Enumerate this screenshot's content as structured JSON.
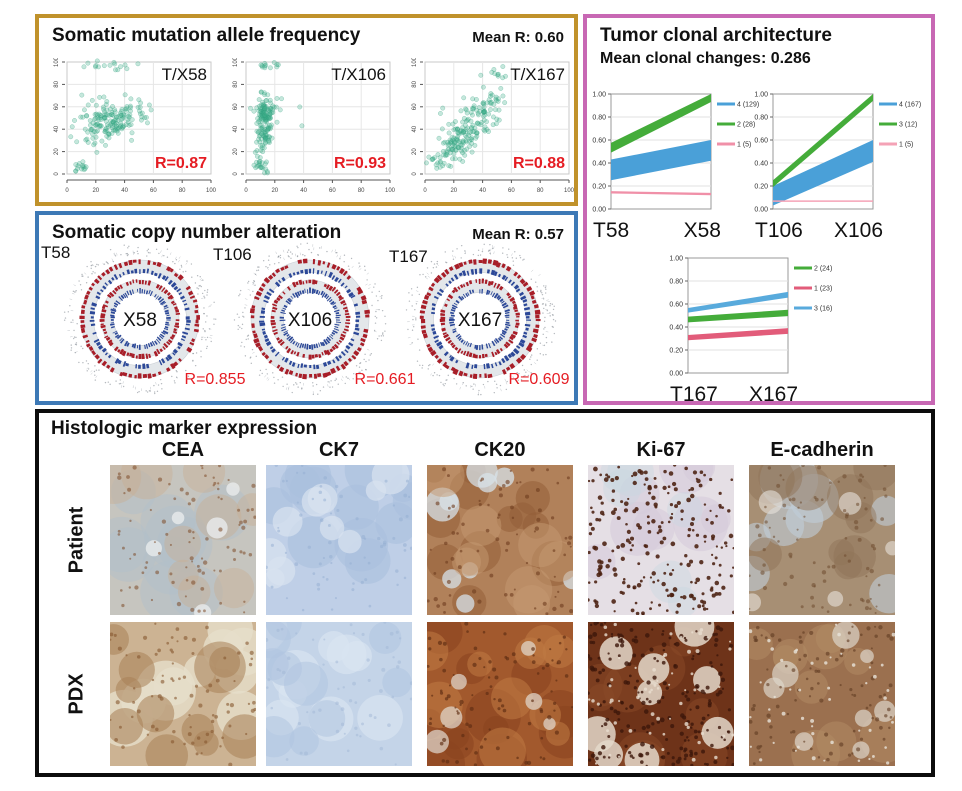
{
  "panels": {
    "maf": {
      "title": "Somatic mutation allele frequency",
      "mean_r": "Mean R: 0.60"
    },
    "scna": {
      "title": "Somatic copy number alteration",
      "mean_r": "Mean R: 0.57"
    },
    "clonal": {
      "title": "Tumor clonal architecture",
      "subtitle": "Mean clonal changes: 0.286"
    },
    "histo": {
      "title": "Histologic marker expression",
      "columns": [
        "CEA",
        "CK7",
        "CK20",
        "Ki-67",
        "E-cadherin"
      ],
      "rows": [
        "Patient",
        "PDX"
      ]
    }
  },
  "colors": {
    "maf_border": "#c0922b",
    "scna_border": "#3d79b6",
    "clonal_border": "#c868b4",
    "histo_border": "#0c0c0c",
    "scatter_point": "#3fae8c",
    "red_label": "#e51c23",
    "circos_red": "#a81e28",
    "circos_blue": "#2c4898",
    "clonal_blue": "#4aa0d8",
    "clonal_green": "#44ac3a",
    "clonal_pink": "#f090a8",
    "clonal_redpink": "#e25c7a"
  },
  "chart_data": {
    "maf_scatters": [
      {
        "type": "scatter",
        "label": "T/X58",
        "r_label": "R=0.87",
        "xlim": [
          0,
          100
        ],
        "ylim": [
          0,
          100
        ],
        "ticks": [
          0,
          20,
          40,
          60,
          80,
          100
        ],
        "seed": 101,
        "clusters": [
          [
            30,
            46,
            8,
            7,
            110
          ],
          [
            33,
            53,
            12,
            10,
            40
          ],
          [
            10,
            7,
            2.5,
            3,
            14
          ],
          [
            28,
            97,
            10,
            2,
            16
          ],
          [
            50,
            60,
            8,
            8,
            10
          ],
          [
            15,
            30,
            6,
            6,
            10
          ]
        ]
      },
      {
        "type": "scatter",
        "label": "T/X106",
        "r_label": "R=0.93",
        "xlim": [
          0,
          100
        ],
        "ylim": [
          0,
          100
        ],
        "ticks": [
          0,
          20,
          40,
          60,
          80,
          100
        ],
        "seed": 102,
        "clusters": [
          [
            13,
            50,
            3,
            8,
            90
          ],
          [
            13,
            30,
            3,
            8,
            40
          ],
          [
            11,
            8,
            2.5,
            4,
            22
          ],
          [
            13,
            62,
            4,
            6,
            25
          ],
          [
            14,
            96,
            5,
            2.5,
            12
          ],
          [
            28,
            55,
            8,
            8,
            6
          ]
        ]
      },
      {
        "type": "scatter",
        "label": "T/X167",
        "r_label": "R=0.88",
        "xlim": [
          0,
          100
        ],
        "ylim": [
          0,
          100
        ],
        "ticks": [
          0,
          20,
          40,
          60,
          80,
          100
        ],
        "seed": 103,
        "clusters": [
          [
            20,
            24,
            6,
            6,
            60
          ],
          [
            30,
            38,
            6,
            6,
            55
          ],
          [
            38,
            52,
            6,
            7,
            40
          ],
          [
            46,
            66,
            5,
            6,
            22
          ],
          [
            10,
            10,
            4,
            4,
            18
          ],
          [
            50,
            88,
            5,
            4,
            10
          ],
          [
            25,
            55,
            8,
            8,
            10
          ]
        ]
      }
    ],
    "scna_circos": [
      {
        "type": "heatmap-circular",
        "outer_label": "T58",
        "center_label": "X58",
        "r_label": "R=0.855",
        "seed": 201
      },
      {
        "type": "heatmap-circular",
        "outer_label": "T106",
        "center_label": "X106",
        "r_label": "R=0.661",
        "seed": 202
      },
      {
        "type": "heatmap-circular",
        "outer_label": "T167",
        "center_label": "X167",
        "r_label": "R=0.609",
        "seed": 203
      }
    ],
    "clonal_charts": [
      {
        "type": "area",
        "x_labels": [
          "T58",
          "X58"
        ],
        "ylim": [
          0,
          1
        ],
        "y_ticks": [
          "1.00",
          "0.80",
          "0.60",
          "0.40",
          "0.20",
          "0.00"
        ],
        "series": [
          {
            "name": "4 (129)",
            "color": "#4aa0d8",
            "start": [
              0.25,
              0.43
            ],
            "end": [
              0.42,
              0.6
            ]
          },
          {
            "name": "2 (28)",
            "color": "#44ac3a",
            "start": [
              0.49,
              0.575
            ],
            "end": [
              0.93,
              1.0
            ]
          },
          {
            "name": "1 (5)",
            "color": "#f090a8",
            "start": [
              0.135,
              0.155
            ],
            "end": [
              0.12,
              0.14
            ]
          }
        ],
        "legend": [
          {
            "label": "4 (129)",
            "color": "#4aa0d8"
          },
          {
            "label": "2 (28)",
            "color": "#44ac3a"
          },
          {
            "label": "1 (5)",
            "color": "#f090a8"
          }
        ]
      },
      {
        "type": "area",
        "x_labels": [
          "T106",
          "X106"
        ],
        "ylim": [
          0,
          1
        ],
        "y_ticks": [
          "1.00",
          "0.80",
          "0.60",
          "0.40",
          "0.20",
          "0.00"
        ],
        "series": [
          {
            "name": "4 (167)",
            "color": "#4aa0d8",
            "start": [
              0.03,
              0.2
            ],
            "end": [
              0.41,
              0.6
            ]
          },
          {
            "name": "3 (12)",
            "color": "#44ac3a",
            "start": [
              0.19,
              0.25
            ],
            "end": [
              0.94,
              1.0
            ]
          },
          {
            "name": "1 (5)",
            "color": "#f4a2b6",
            "start": [
              0.062,
              0.075
            ],
            "end": [
              0.062,
              0.075
            ]
          }
        ],
        "legend": [
          {
            "label": "4 (167)",
            "color": "#4aa0d8"
          },
          {
            "label": "3 (12)",
            "color": "#44ac3a"
          },
          {
            "label": "1 (5)",
            "color": "#f4a2b6"
          }
        ]
      },
      {
        "type": "area",
        "x_labels": [
          "T167",
          "X167"
        ],
        "ylim": [
          0,
          1
        ],
        "y_ticks": [
          "1.00",
          "0.80",
          "0.60",
          "0.40",
          "0.20",
          "0.00"
        ],
        "series": [
          {
            "name": "3 (16)",
            "color": "#58aadc",
            "start": [
              0.525,
              0.565
            ],
            "end": [
              0.655,
              0.705
            ]
          },
          {
            "name": "2 (24)",
            "color": "#44ac3a",
            "start": [
              0.44,
              0.49
            ],
            "end": [
              0.495,
              0.55
            ]
          },
          {
            "name": "1 (23)",
            "color": "#e25c7a",
            "start": [
              0.285,
              0.33
            ],
            "end": [
              0.34,
              0.39
            ]
          }
        ],
        "legend": [
          {
            "label": "2 (24)",
            "color": "#44ac3a"
          },
          {
            "label": "1 (23)",
            "color": "#e25c7a"
          },
          {
            "label": "3 (16)",
            "color": "#58aadc"
          }
        ]
      }
    ],
    "histo_cells": [
      [
        {
          "seed": 11,
          "base": "#c6c5bf",
          "blobs": [
            [
              "#b2bfca",
              0.5,
              10,
              18,
              34
            ],
            [
              "#c8b094",
              0.45,
              9,
              14,
              30
            ],
            [
              "#e9ebec",
              0.8,
              5,
              6,
              12
            ]
          ],
          "dots": [
            [
              "#7d4b28",
              0.55,
              90,
              1,
              2.2
            ]
          ]
        },
        {
          "seed": 12,
          "base": "#bfcfe7",
          "blobs": [
            [
              "#aac0de",
              0.6,
              12,
              14,
              30
            ],
            [
              "#d8e2ef",
              0.7,
              10,
              10,
              22
            ]
          ],
          "dots": [
            [
              "#93aed2",
              0.5,
              70,
              1,
              2
            ]
          ]
        },
        {
          "seed": 13,
          "base": "#b1815a",
          "blobs": [
            [
              "#935e38",
              0.55,
              12,
              12,
              26
            ],
            [
              "#d7e1e8",
              0.75,
              9,
              8,
              18
            ],
            [
              "#c59a72",
              0.5,
              8,
              12,
              24
            ]
          ],
          "dots": [
            [
              "#6e3c1e",
              0.6,
              80,
              1,
              2.2
            ]
          ]
        },
        {
          "seed": 14,
          "base": "#e5dfe5",
          "blobs": [
            [
              "#d6cbdb",
              0.6,
              8,
              14,
              28
            ],
            [
              "#c9d6e2",
              0.4,
              6,
              12,
              24
            ]
          ],
          "dots": [
            [
              "#4a2010",
              0.88,
              230,
              1.1,
              2.4
            ]
          ]
        },
        {
          "seed": 15,
          "base": "#a78f74",
          "blobs": [
            [
              "#bfcdd8",
              0.6,
              8,
              14,
              30
            ],
            [
              "#8f7458",
              0.5,
              10,
              12,
              26
            ],
            [
              "#e7e3dc",
              0.6,
              5,
              6,
              12
            ]
          ],
          "dots": [
            [
              "#6d4a2e",
              0.55,
              85,
              1,
              2.2
            ]
          ]
        }
      ],
      [
        {
          "seed": 21,
          "base": "#ccb393",
          "blobs": [
            [
              "#e6decb",
              0.8,
              10,
              14,
              32
            ],
            [
              "#a87f55",
              0.55,
              11,
              12,
              28
            ]
          ],
          "dots": [
            [
              "#86572f",
              0.6,
              85,
              1,
              2.2
            ]
          ]
        },
        {
          "seed": 22,
          "base": "#c4d4e8",
          "blobs": [
            [
              "#d9e4f1",
              0.7,
              10,
              12,
              26
            ],
            [
              "#b0c5e0",
              0.55,
              10,
              12,
              26
            ]
          ],
          "dots": [
            [
              "#a2b8d6",
              0.5,
              60,
              1,
              2
            ]
          ]
        },
        {
          "seed": 23,
          "base": "#a2592d",
          "blobs": [
            [
              "#8a4420",
              0.6,
              12,
              12,
              28
            ],
            [
              "#c07a44",
              0.55,
              10,
              12,
              24
            ],
            [
              "#e2dcd2",
              0.7,
              6,
              6,
              14
            ]
          ],
          "dots": [
            [
              "#5e2c12",
              0.65,
              95,
              1,
              2.2
            ]
          ]
        },
        {
          "seed": 24,
          "base": "#6e3319",
          "blobs": [
            [
              "#8a4a28",
              0.5,
              10,
              12,
              26
            ],
            [
              "#e4d8ca",
              0.85,
              9,
              8,
              20
            ]
          ],
          "dots": [
            [
              "#3c160a",
              0.8,
              210,
              1.1,
              2.4
            ],
            [
              "#e8ddcf",
              0.8,
              60,
              1,
              2
            ]
          ]
        },
        {
          "seed": 25,
          "base": "#9b704f",
          "blobs": [
            [
              "#b18a64",
              0.55,
              10,
              12,
              26
            ],
            [
              "#ddd6ca",
              0.7,
              8,
              6,
              14
            ]
          ],
          "dots": [
            [
              "#5f3a22",
              0.6,
              95,
              1,
              2.2
            ],
            [
              "#e9e3d9",
              0.8,
              50,
              1,
              2
            ]
          ]
        }
      ]
    ]
  }
}
